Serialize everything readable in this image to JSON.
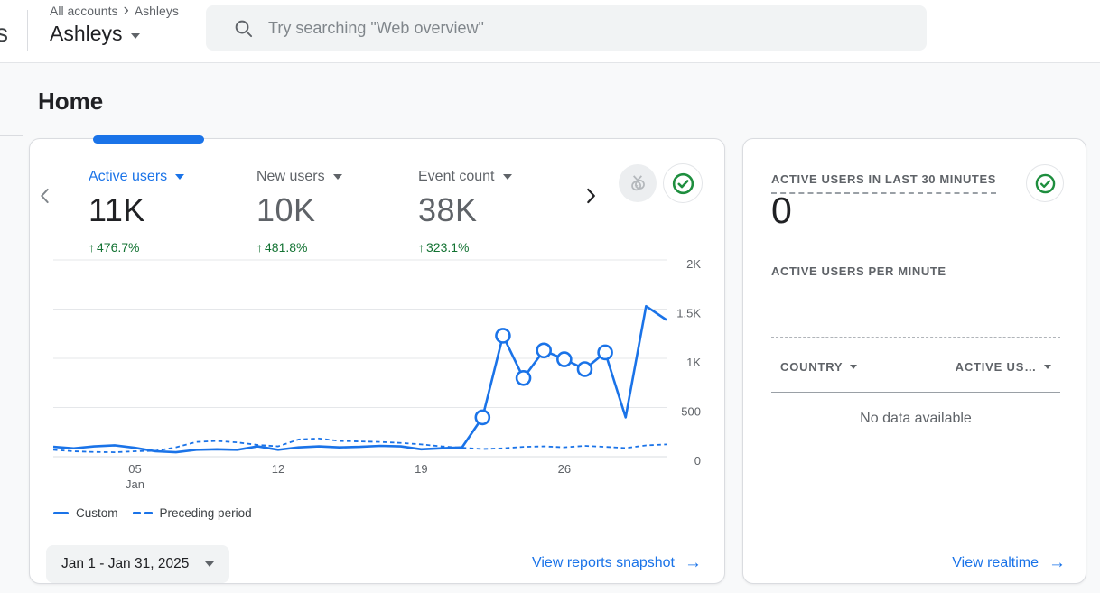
{
  "topbar": {
    "partial_left_text": "s",
    "breadcrumb": {
      "root": "All accounts",
      "current": "Ashleys"
    },
    "account_selector": "Ashleys",
    "search": {
      "placeholder": "Try searching \"Web overview\""
    }
  },
  "page": {
    "title": "Home"
  },
  "icons": {
    "up_arrow": "↑",
    "right_arrow": "→",
    "breadcrumb_separator": "›"
  },
  "overview_card": {
    "metrics": [
      {
        "label": "Active users",
        "value": "11K",
        "change": "476.7%",
        "active": true
      },
      {
        "label": "New users",
        "value": "10K",
        "change": "481.8%",
        "active": false
      },
      {
        "label": "Event count",
        "value": "38K",
        "change": "323.1%",
        "active": false
      }
    ],
    "legend": [
      {
        "label": "Custom",
        "style": "solid"
      },
      {
        "label": "Preceding period",
        "style": "dashed"
      }
    ],
    "date_range_label": "Jan 1 - Jan 31, 2025",
    "footer_link": "View reports snapshot",
    "chart_data": {
      "type": "line",
      "title": "Active users trend, Jan 1 - Jan 31, 2025",
      "x_unit": "day of January 2025",
      "x": [
        1,
        2,
        3,
        4,
        5,
        6,
        7,
        8,
        9,
        10,
        11,
        12,
        13,
        14,
        15,
        16,
        17,
        18,
        19,
        20,
        21,
        22,
        23,
        24,
        25,
        26,
        27,
        28,
        29,
        30,
        31
      ],
      "series": [
        {
          "name": "Custom",
          "style": "solid",
          "values": [
            100,
            85,
            105,
            115,
            90,
            55,
            45,
            70,
            75,
            70,
            105,
            70,
            95,
            105,
            95,
            100,
            110,
            105,
            75,
            85,
            95,
            400,
            1230,
            800,
            1080,
            990,
            890,
            1060,
            400,
            1530,
            1390
          ],
          "markers_on": [
            22,
            23,
            24,
            25,
            26,
            27,
            28
          ]
        },
        {
          "name": "Preceding period",
          "style": "dashed",
          "values": [
            70,
            55,
            48,
            45,
            55,
            60,
            95,
            150,
            160,
            145,
            120,
            105,
            175,
            185,
            160,
            155,
            150,
            140,
            125,
            105,
            90,
            78,
            85,
            100,
            105,
            95,
            110,
            100,
            88,
            115,
            125
          ]
        }
      ],
      "ylim": [
        0,
        2000
      ],
      "yticks": [
        0,
        500,
        1000,
        1500,
        2000
      ],
      "ytick_labels": [
        "0",
        "500",
        "1K",
        "1.5K",
        "2K"
      ],
      "xticks": [
        5,
        12,
        19,
        26
      ],
      "xtick_labels": [
        "05",
        "12",
        "19",
        "26"
      ],
      "xtick_sublabel": "Jan",
      "grid": true,
      "legend_position": "bottom-left"
    }
  },
  "realtime_card": {
    "title": "ACTIVE USERS IN LAST 30 MINUTES",
    "active_users_value": "0",
    "per_minute_label": "ACTIVE USERS PER MINUTE",
    "table": {
      "columns": [
        "COUNTRY",
        "ACTIVE US…"
      ],
      "empty_message": "No data available"
    },
    "footer_link": "View realtime"
  },
  "colors": {
    "accent_blue": "#1a73e8",
    "positive_green": "#137333",
    "check_green": "#1e8e3e",
    "text_dark": "#202124",
    "text_gray": "#5f6368",
    "border": "#dadce0",
    "page_bg": "#f8f9fa",
    "chip_bg": "#f1f3f4"
  }
}
